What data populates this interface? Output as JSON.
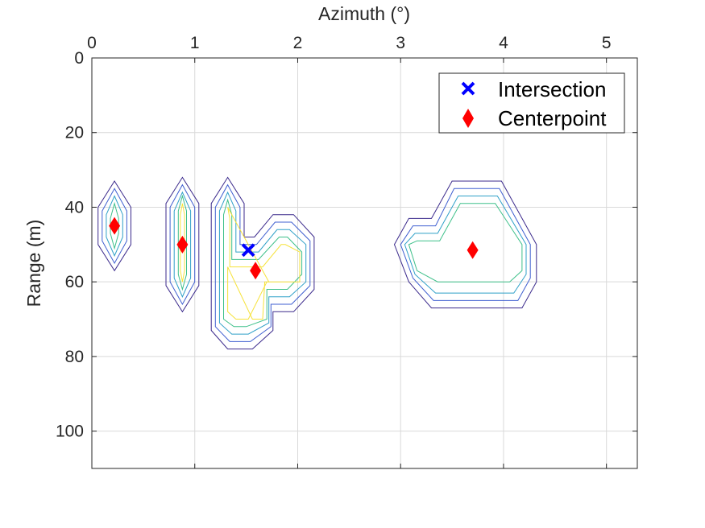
{
  "chart_data": {
    "type": "contour",
    "xlabel": "Azimuth (°)",
    "ylabel": "Range (m)",
    "xlim": [
      0,
      5.3
    ],
    "ylim": [
      0,
      110
    ],
    "y_reversed": true,
    "x_axis_location": "top",
    "x_ticks": [
      "0",
      "1",
      "2",
      "3",
      "4",
      "5"
    ],
    "y_ticks": [
      "0",
      "20",
      "40",
      "60",
      "80",
      "100"
    ],
    "grid": true,
    "legend_position": "top-right",
    "level_colors": [
      "#3b2a8c",
      "#3f5fd0",
      "#2fa0c8",
      "#3ec08a",
      "#f6e23a"
    ],
    "contours": [
      {
        "level": 0,
        "polygons": [
          [
            [
              0.22,
              33
            ],
            [
              0.38,
              40
            ],
            [
              0.38,
              50
            ],
            [
              0.22,
              57
            ],
            [
              0.06,
              50
            ],
            [
              0.06,
              40
            ]
          ],
          [
            [
              0.88,
              32
            ],
            [
              1.04,
              39
            ],
            [
              1.04,
              61
            ],
            [
              0.88,
              68
            ],
            [
              0.72,
              61
            ],
            [
              0.72,
              39
            ]
          ],
          [
            [
              1.32,
              32
            ],
            [
              1.48,
              39
            ],
            [
              1.48,
              48
            ],
            [
              1.58,
              48
            ],
            [
              1.76,
              42
            ],
            [
              1.96,
              42
            ],
            [
              2.16,
              48
            ],
            [
              2.16,
              62
            ],
            [
              1.96,
              68
            ],
            [
              1.76,
              68
            ],
            [
              1.76,
              73
            ],
            [
              1.56,
              78
            ],
            [
              1.32,
              78
            ],
            [
              1.16,
              73
            ],
            [
              1.16,
              39
            ]
          ],
          [
            [
              2.94,
              50
            ],
            [
              3.08,
              43
            ],
            [
              3.3,
              43
            ],
            [
              3.5,
              33
            ],
            [
              3.98,
              33
            ],
            [
              4.32,
              50
            ],
            [
              4.32,
              60
            ],
            [
              4.18,
              67
            ],
            [
              3.3,
              67
            ],
            [
              3.08,
              60
            ]
          ]
        ]
      },
      {
        "level": 1,
        "polygons": [
          [
            [
              0.22,
              35
            ],
            [
              0.34,
              41
            ],
            [
              0.34,
              49
            ],
            [
              0.22,
              55
            ],
            [
              0.1,
              49
            ],
            [
              0.1,
              41
            ]
          ],
          [
            [
              0.88,
              34
            ],
            [
              1.0,
              40
            ],
            [
              1.0,
              60
            ],
            [
              0.88,
              66
            ],
            [
              0.76,
              60
            ],
            [
              0.76,
              40
            ]
          ],
          [
            [
              1.32,
              34
            ],
            [
              1.44,
              40
            ],
            [
              1.44,
              50
            ],
            [
              1.6,
              50
            ],
            [
              1.78,
              44
            ],
            [
              1.94,
              44
            ],
            [
              2.12,
              49
            ],
            [
              2.12,
              61
            ],
            [
              1.94,
              66
            ],
            [
              1.74,
              66
            ],
            [
              1.74,
              72
            ],
            [
              1.54,
              76
            ],
            [
              1.34,
              76
            ],
            [
              1.2,
              72
            ],
            [
              1.2,
              40
            ]
          ],
          [
            [
              3.0,
              50
            ],
            [
              3.12,
              45
            ],
            [
              3.34,
              45
            ],
            [
              3.52,
              35
            ],
            [
              3.96,
              35
            ],
            [
              4.26,
              50
            ],
            [
              4.26,
              59
            ],
            [
              4.14,
              65
            ],
            [
              3.32,
              65
            ],
            [
              3.12,
              59
            ]
          ]
        ]
      },
      {
        "level": 2,
        "polygons": [
          [
            [
              0.22,
              37
            ],
            [
              0.3,
              42
            ],
            [
              0.3,
              48
            ],
            [
              0.22,
              53
            ],
            [
              0.14,
              48
            ],
            [
              0.14,
              42
            ]
          ],
          [
            [
              0.88,
              36
            ],
            [
              0.96,
              41
            ],
            [
              0.96,
              59
            ],
            [
              0.88,
              64
            ],
            [
              0.8,
              59
            ],
            [
              0.8,
              41
            ]
          ],
          [
            [
              1.32,
              36
            ],
            [
              1.4,
              41
            ],
            [
              1.4,
              52
            ],
            [
              1.62,
              52
            ],
            [
              1.8,
              46
            ],
            [
              1.92,
              46
            ],
            [
              2.08,
              50
            ],
            [
              2.08,
              60
            ],
            [
              1.92,
              64
            ],
            [
              1.72,
              64
            ],
            [
              1.72,
              71
            ],
            [
              1.52,
              74
            ],
            [
              1.36,
              74
            ],
            [
              1.24,
              71
            ],
            [
              1.24,
              41
            ]
          ],
          [
            [
              3.04,
              50
            ],
            [
              3.14,
              47
            ],
            [
              3.36,
              47
            ],
            [
              3.56,
              37
            ],
            [
              3.94,
              37
            ],
            [
              4.22,
              50
            ],
            [
              4.22,
              58
            ],
            [
              4.1,
              63
            ],
            [
              3.34,
              63
            ],
            [
              3.14,
              58
            ]
          ]
        ]
      },
      {
        "level": 3,
        "polygons": [
          [
            [
              0.22,
              39
            ],
            [
              0.26,
              43
            ],
            [
              0.26,
              47
            ],
            [
              0.22,
              51
            ],
            [
              0.18,
              47
            ],
            [
              0.18,
              43
            ]
          ],
          [
            [
              0.88,
              37
            ],
            [
              0.92,
              41
            ],
            [
              0.92,
              58
            ],
            [
              0.88,
              62
            ],
            [
              0.84,
              58
            ],
            [
              0.84,
              41
            ]
          ],
          [
            [
              1.32,
              38
            ],
            [
              1.36,
              42
            ],
            [
              1.36,
              54
            ],
            [
              1.62,
              54
            ],
            [
              1.82,
              48
            ],
            [
              1.9,
              48
            ],
            [
              2.04,
              52
            ],
            [
              2.04,
              58
            ],
            [
              1.9,
              62
            ],
            [
              1.7,
              62
            ],
            [
              1.7,
              70
            ],
            [
              1.5,
              72
            ],
            [
              1.38,
              72
            ],
            [
              1.28,
              70
            ],
            [
              1.28,
              42
            ]
          ],
          [
            [
              3.08,
              50
            ],
            [
              3.16,
              49
            ],
            [
              3.38,
              49
            ],
            [
              3.58,
              39
            ],
            [
              3.92,
              39
            ],
            [
              4.18,
              50
            ],
            [
              4.18,
              57
            ],
            [
              4.06,
              60
            ],
            [
              3.36,
              60
            ],
            [
              3.16,
              57
            ]
          ]
        ]
      },
      {
        "level": 4,
        "polygons": [
          [
            [
              0.88,
              39
            ],
            [
              0.9,
              42
            ],
            [
              0.9,
              57
            ],
            [
              0.88,
              60
            ],
            [
              0.86,
              57
            ],
            [
              0.86,
              42
            ]
          ],
          [
            [
              1.32,
              40
            ],
            [
              1.34,
              43
            ],
            [
              1.34,
              56
            ],
            [
              1.64,
              56
            ],
            [
              1.72,
              60
            ],
            [
              2.02,
              60
            ],
            [
              2.02,
              52
            ],
            [
              1.88,
              50
            ],
            [
              1.84,
              50
            ],
            [
              1.66,
              56
            ],
            [
              1.64,
              56
            ]
          ],
          [
            [
              1.32,
              56
            ],
            [
              1.56,
              70
            ],
            [
              1.66,
              70
            ],
            [
              1.68,
              60
            ],
            [
              1.72,
              60
            ],
            [
              1.7,
              60
            ],
            [
              1.52,
              70
            ],
            [
              1.4,
              70
            ],
            [
              1.32,
              68
            ]
          ]
        ]
      }
    ],
    "series": [
      {
        "name": "Intersection",
        "marker": "x",
        "color": "#0000ff",
        "points": [
          [
            1.52,
            51.5
          ]
        ]
      },
      {
        "name": "Centerpoint",
        "marker": "diamond",
        "color": "#ff0000",
        "points": [
          [
            0.22,
            45
          ],
          [
            0.88,
            50
          ],
          [
            1.59,
            57
          ],
          [
            3.7,
            51.5
          ]
        ]
      }
    ]
  }
}
